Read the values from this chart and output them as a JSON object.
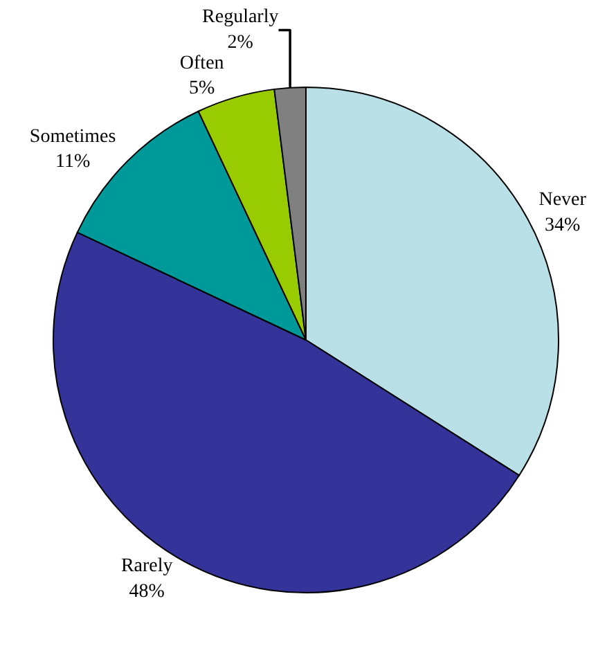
{
  "chart_data": {
    "type": "pie",
    "categories": [
      "Never",
      "Rarely",
      "Sometimes",
      "Often",
      "Regularly"
    ],
    "values": [
      34,
      48,
      11,
      5,
      2
    ],
    "value_labels": [
      "34%",
      "48%",
      "11%",
      "5%",
      "2%"
    ],
    "colors": [
      "#b8e0e6",
      "#333399",
      "#009999",
      "#99cc00",
      "#808080"
    ],
    "legend": false
  }
}
